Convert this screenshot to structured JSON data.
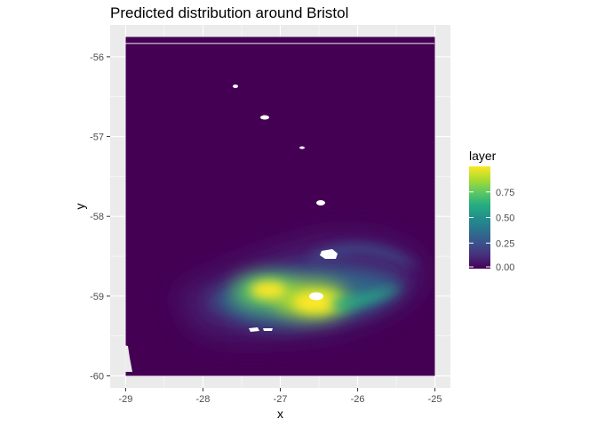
{
  "chart_data": {
    "type": "heatmap",
    "title": "Predicted distribution around Bristol",
    "xlabel": "x",
    "ylabel": "y",
    "xlim": [
      -29.2,
      -24.8
    ],
    "ylim": [
      -60.15,
      -55.6
    ],
    "x_ticks": [
      -29,
      -28,
      -27,
      -26,
      -25
    ],
    "x_tick_labels": [
      "-29",
      "-28",
      "-27",
      "-26",
      "-25"
    ],
    "y_ticks": [
      -56,
      -57,
      -58,
      -59,
      -60
    ],
    "y_tick_labels": [
      "-56",
      "-57",
      "-58",
      "-59",
      "-60"
    ],
    "grid": true,
    "raster_extent": {
      "x": [
        -29.0,
        -25.0
      ],
      "y": [
        -60.0,
        -55.75
      ]
    },
    "background_value": 0.0,
    "hotspots": [
      {
        "x": -26.6,
        "y": -59.03,
        "value": 0.98
      },
      {
        "x": -27.2,
        "y": -58.93,
        "value": 0.9
      },
      {
        "x": -26.2,
        "y": -59.08,
        "value": 0.75
      },
      {
        "x": -27.8,
        "y": -59.0,
        "value": 0.35
      },
      {
        "x": -25.8,
        "y": -58.75,
        "value": 0.3
      }
    ],
    "land_masks": [
      {
        "x": -27.6,
        "y": -56.3
      },
      {
        "x": -27.2,
        "y": -56.7
      },
      {
        "x": -26.8,
        "y": -57.1
      },
      {
        "x": -26.55,
        "y": -57.8
      },
      {
        "x": -26.5,
        "y": -58.47
      },
      {
        "x": -26.6,
        "y": -59.0
      },
      {
        "x": -27.35,
        "y": -59.43
      }
    ],
    "legend": {
      "title": "layer",
      "placement": "right",
      "colorscale": "viridis",
      "range": [
        0,
        1
      ],
      "ticks": [
        0.0,
        0.25,
        0.5,
        0.75
      ],
      "tick_labels": [
        "0.00",
        "0.25",
        "0.50",
        "0.75"
      ]
    }
  },
  "colors": {
    "panel_background": "#ebebeb",
    "grid_major": "#ffffff",
    "viridis_low": "#440154",
    "viridis_mid": "#21908c",
    "viridis_high": "#fde725"
  }
}
